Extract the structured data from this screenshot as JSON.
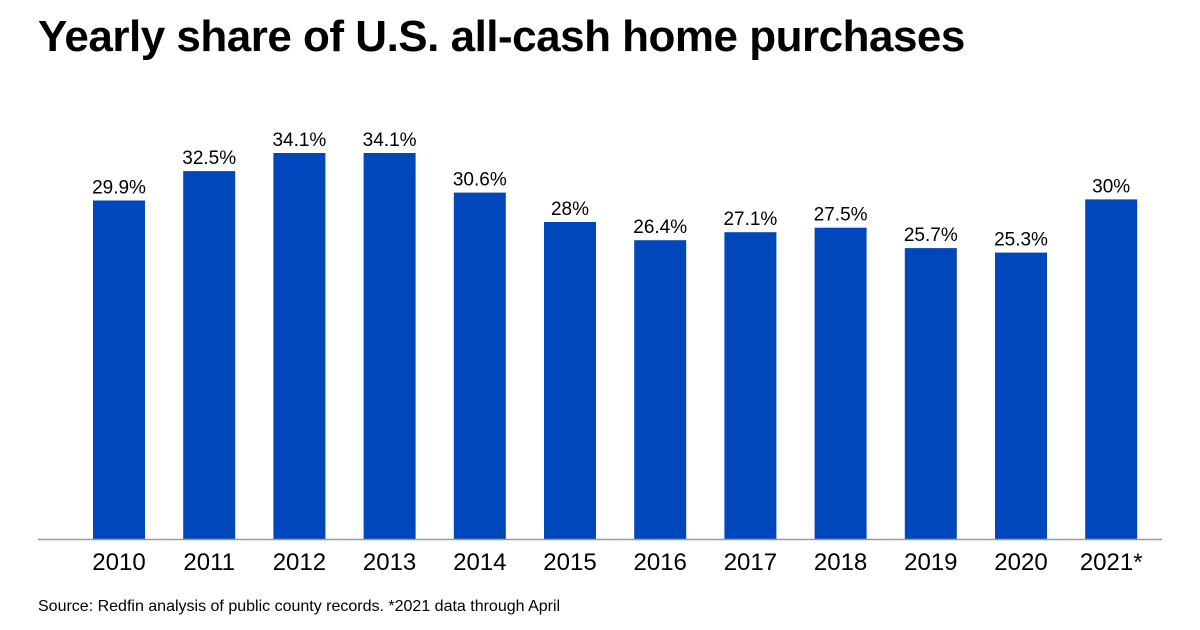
{
  "title": "Yearly share of U.S. all-cash home purchases",
  "source": "Source: Redfin analysis of public county records. *2021 data through April",
  "colors": {
    "bar": "#0047bb",
    "axis": "#9a9a9a",
    "text": "#000000"
  },
  "chart_data": {
    "type": "bar",
    "categories": [
      "2010",
      "2011",
      "2012",
      "2013",
      "2014",
      "2015",
      "2016",
      "2017",
      "2018",
      "2019",
      "2020",
      "2021*"
    ],
    "values": [
      29.9,
      32.5,
      34.1,
      34.1,
      30.6,
      28,
      26.4,
      27.1,
      27.5,
      25.7,
      25.3,
      30
    ],
    "data_labels": [
      "29.9%",
      "32.5%",
      "34.1%",
      "34.1%",
      "30.6%",
      "28%",
      "26.4%",
      "27.1%",
      "27.5%",
      "25.7%",
      "25.3%",
      "30%"
    ],
    "ylim": [
      0,
      34.1
    ],
    "grid": false,
    "legend": "none"
  }
}
